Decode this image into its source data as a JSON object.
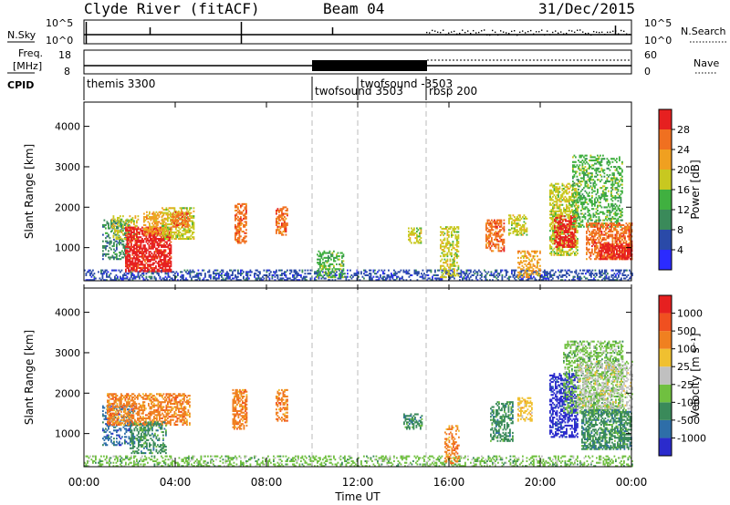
{
  "header": {
    "title": "Clyde River (fitACF)",
    "beam": "Beam 04",
    "date": "31/Dec/2015"
  },
  "top_panels": {
    "nsky_label": "N.Sky",
    "nsearch_label": "N.Search",
    "freq_label_line1": "Freq.",
    "freq_label_line2": "[MHz]",
    "nave_label": "Nave",
    "cpid_label": "CPID",
    "nsky_ticks": [
      "10^5",
      "10^0"
    ],
    "nsearch_ticks": [
      "10^5",
      "10^0"
    ],
    "freq_ticks": [
      "18",
      "8"
    ],
    "nave_ticks": [
      "60",
      "0"
    ]
  },
  "cpid_segments": [
    {
      "label": "themis 3300",
      "start": 0,
      "end": 10
    },
    {
      "label": "twofsound 3503",
      "start": 10,
      "end": 12
    },
    {
      "label": "twofsound -3503",
      "start": 12,
      "end": 15
    },
    {
      "label": "rbsp 200",
      "start": 15,
      "end": 24
    }
  ],
  "chart_data": [
    {
      "type": "heatmap",
      "panel": "power",
      "ylabel": "Slant Range [km]",
      "xlim": [
        0,
        24
      ],
      "ylim": [
        180,
        4600
      ],
      "y_ticks": [
        "1000",
        "2000",
        "3000",
        "4000"
      ],
      "colorbar_label": "Power [dB]",
      "colorbar_ticks": [
        "4",
        "8",
        "12",
        "16",
        "20",
        "24",
        "28"
      ],
      "colorbar_colors": [
        "#2b2bff",
        "#2a4aa8",
        "#3a8a5a",
        "#40b040",
        "#c8c820",
        "#f0a020",
        "#f07020",
        "#e62020"
      ],
      "regions": [
        {
          "t0": 0.0,
          "t1": 24.0,
          "r0": 180,
          "r1": 450,
          "level": 1,
          "density": 0.4
        },
        {
          "t0": 0.8,
          "t1": 2.0,
          "r0": 700,
          "r1": 1700,
          "level": 2,
          "density": 0.35
        },
        {
          "t0": 1.2,
          "t1": 2.4,
          "r0": 1200,
          "r1": 1800,
          "level": 4,
          "density": 0.4
        },
        {
          "t0": 1.8,
          "t1": 3.8,
          "r0": 400,
          "r1": 1500,
          "level": 7,
          "density": 0.7
        },
        {
          "t0": 2.6,
          "t1": 3.6,
          "r0": 1300,
          "r1": 1900,
          "level": 5,
          "density": 0.55
        },
        {
          "t0": 3.4,
          "t1": 4.8,
          "r0": 1200,
          "r1": 2000,
          "level": 4,
          "density": 0.5
        },
        {
          "t0": 3.8,
          "t1": 4.6,
          "r0": 1500,
          "r1": 1900,
          "level": 6,
          "density": 0.45
        },
        {
          "t0": 6.6,
          "t1": 7.1,
          "r0": 1100,
          "r1": 2100,
          "level": 6,
          "density": 0.55
        },
        {
          "t0": 8.4,
          "t1": 8.9,
          "r0": 1300,
          "r1": 2000,
          "level": 6,
          "density": 0.55
        },
        {
          "t0": 10.2,
          "t1": 11.4,
          "r0": 250,
          "r1": 900,
          "level": 3,
          "density": 0.45
        },
        {
          "t0": 14.2,
          "t1": 14.8,
          "r0": 1100,
          "r1": 1500,
          "level": 4,
          "density": 0.5
        },
        {
          "t0": 15.6,
          "t1": 16.4,
          "r0": 250,
          "r1": 1500,
          "level": 4,
          "density": 0.45
        },
        {
          "t0": 17.6,
          "t1": 18.4,
          "r0": 900,
          "r1": 1700,
          "level": 6,
          "density": 0.55
        },
        {
          "t0": 18.6,
          "t1": 19.4,
          "r0": 1300,
          "r1": 1800,
          "level": 4,
          "density": 0.5
        },
        {
          "t0": 19.0,
          "t1": 20.0,
          "r0": 250,
          "r1": 900,
          "level": 5,
          "density": 0.45
        },
        {
          "t0": 20.4,
          "t1": 21.6,
          "r0": 800,
          "r1": 2600,
          "level": 4,
          "density": 0.55
        },
        {
          "t0": 20.6,
          "t1": 21.5,
          "r0": 1000,
          "r1": 1800,
          "level": 7,
          "density": 0.6
        },
        {
          "t0": 21.4,
          "t1": 23.6,
          "r0": 1500,
          "r1": 3300,
          "level": 3,
          "density": 0.4
        },
        {
          "t0": 22.0,
          "t1": 24.0,
          "r0": 700,
          "r1": 1600,
          "level": 6,
          "density": 0.6
        },
        {
          "t0": 22.6,
          "t1": 24.0,
          "r0": 700,
          "r1": 1100,
          "level": 7,
          "density": 0.7
        }
      ]
    },
    {
      "type": "heatmap",
      "panel": "velocity",
      "ylabel": "Slant Range [km]",
      "xlabel": "Time UT",
      "xlim": [
        0,
        24
      ],
      "ylim": [
        180,
        4600
      ],
      "x_ticks": [
        "00:00",
        "04:00",
        "08:00",
        "12:00",
        "16:00",
        "20:00",
        "00:00"
      ],
      "y_ticks": [
        "1000",
        "2000",
        "3000",
        "4000"
      ],
      "colorbar_label": "Velocity [m s⁻¹]",
      "colorbar_ticks": [
        "1000",
        "500",
        "100",
        "25",
        "-25",
        "-100",
        "-500",
        "-1000"
      ],
      "colorbar_colors": [
        "#2b2bcc",
        "#2e6ea8",
        "#3a8a5a",
        "#70c040",
        "#c0c0c0",
        "#f0c030",
        "#f08020",
        "#f05020",
        "#e62020"
      ],
      "regions": [
        {
          "t0": 0.0,
          "t1": 24.0,
          "r0": 180,
          "r1": 450,
          "level": 3,
          "density": 0.35
        },
        {
          "t0": 0.8,
          "t1": 2.2,
          "r0": 700,
          "r1": 1700,
          "level": 1,
          "density": 0.35
        },
        {
          "t0": 1.0,
          "t1": 4.6,
          "r0": 1200,
          "r1": 2000,
          "level": 6,
          "density": 0.6
        },
        {
          "t0": 2.0,
          "t1": 3.6,
          "r0": 500,
          "r1": 1300,
          "level": 2,
          "density": 0.45
        },
        {
          "t0": 6.5,
          "t1": 7.1,
          "r0": 1100,
          "r1": 2100,
          "level": 6,
          "density": 0.6
        },
        {
          "t0": 8.4,
          "t1": 8.9,
          "r0": 1300,
          "r1": 2100,
          "level": 6,
          "density": 0.55
        },
        {
          "t0": 14.0,
          "t1": 14.8,
          "r0": 1100,
          "r1": 1500,
          "level": 2,
          "density": 0.5
        },
        {
          "t0": 15.8,
          "t1": 16.4,
          "r0": 250,
          "r1": 1200,
          "level": 6,
          "density": 0.4
        },
        {
          "t0": 17.8,
          "t1": 18.8,
          "r0": 800,
          "r1": 1800,
          "level": 2,
          "density": 0.5
        },
        {
          "t0": 19.0,
          "t1": 19.6,
          "r0": 1300,
          "r1": 1900,
          "level": 5,
          "density": 0.45
        },
        {
          "t0": 20.4,
          "t1": 21.6,
          "r0": 900,
          "r1": 2500,
          "level": 0,
          "density": 0.55
        },
        {
          "t0": 21.0,
          "t1": 23.6,
          "r0": 1500,
          "r1": 3300,
          "level": 3,
          "density": 0.45
        },
        {
          "t0": 21.6,
          "t1": 24.0,
          "r0": 1600,
          "r1": 2800,
          "level": 4,
          "density": 0.35
        },
        {
          "t0": 21.8,
          "t1": 24.0,
          "r0": 600,
          "r1": 1600,
          "level": 2,
          "density": 0.6
        }
      ]
    }
  ]
}
